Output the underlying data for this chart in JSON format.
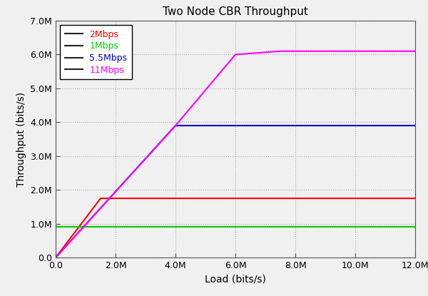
{
  "title": "Two Node CBR Throughput",
  "xlabel": "Load (bits/s)",
  "ylabel": "Throughput (bits/s)",
  "xlim": [
    0,
    12000000
  ],
  "ylim": [
    0,
    7000000
  ],
  "xticks": [
    0,
    2000000,
    4000000,
    6000000,
    8000000,
    10000000,
    12000000
  ],
  "yticks": [
    0,
    1000000,
    2000000,
    3000000,
    4000000,
    5000000,
    6000000,
    7000000
  ],
  "xtick_labels": [
    "0.0",
    "2.0M",
    "4.0M",
    "6.0M",
    "8.0M",
    "10.0M",
    "12.0M"
  ],
  "ytick_labels": [
    "0.0",
    "1.0M",
    "2.0M",
    "3.0M",
    "4.0M",
    "5.0M",
    "6.0M",
    "7.0M"
  ],
  "series": [
    {
      "label": "2Mbps",
      "color": "#ff0000",
      "x": [
        0,
        1500000,
        12000000
      ],
      "y": [
        0,
        1750000,
        1750000
      ]
    },
    {
      "label": "1Mbps",
      "color": "#00cc00",
      "x": [
        0,
        12000000
      ],
      "y": [
        900000,
        900000
      ]
    },
    {
      "label": "5.5Mbps",
      "color": "#0000cc",
      "x": [
        0,
        4000000,
        12000000
      ],
      "y": [
        0,
        3900000,
        3900000
      ]
    },
    {
      "label": "11Mbps",
      "color": "#ff00ff",
      "x": [
        0,
        4000000,
        6000000,
        7500000,
        12000000
      ],
      "y": [
        0,
        3900000,
        6000000,
        6100000,
        6100000
      ]
    }
  ],
  "legend_colors": [
    "#ff0000",
    "#00cc00",
    "#0000cc",
    "#ff00ff"
  ],
  "legend_labels": [
    "2Mbps",
    "1Mbps",
    "5.5Mbps",
    "11Mbps"
  ],
  "background_color": "#f0f0f0",
  "grid_color": "#aaaaaa",
  "grid_linestyle": ":",
  "fig_width": 6.0,
  "fig_height": 4.15
}
